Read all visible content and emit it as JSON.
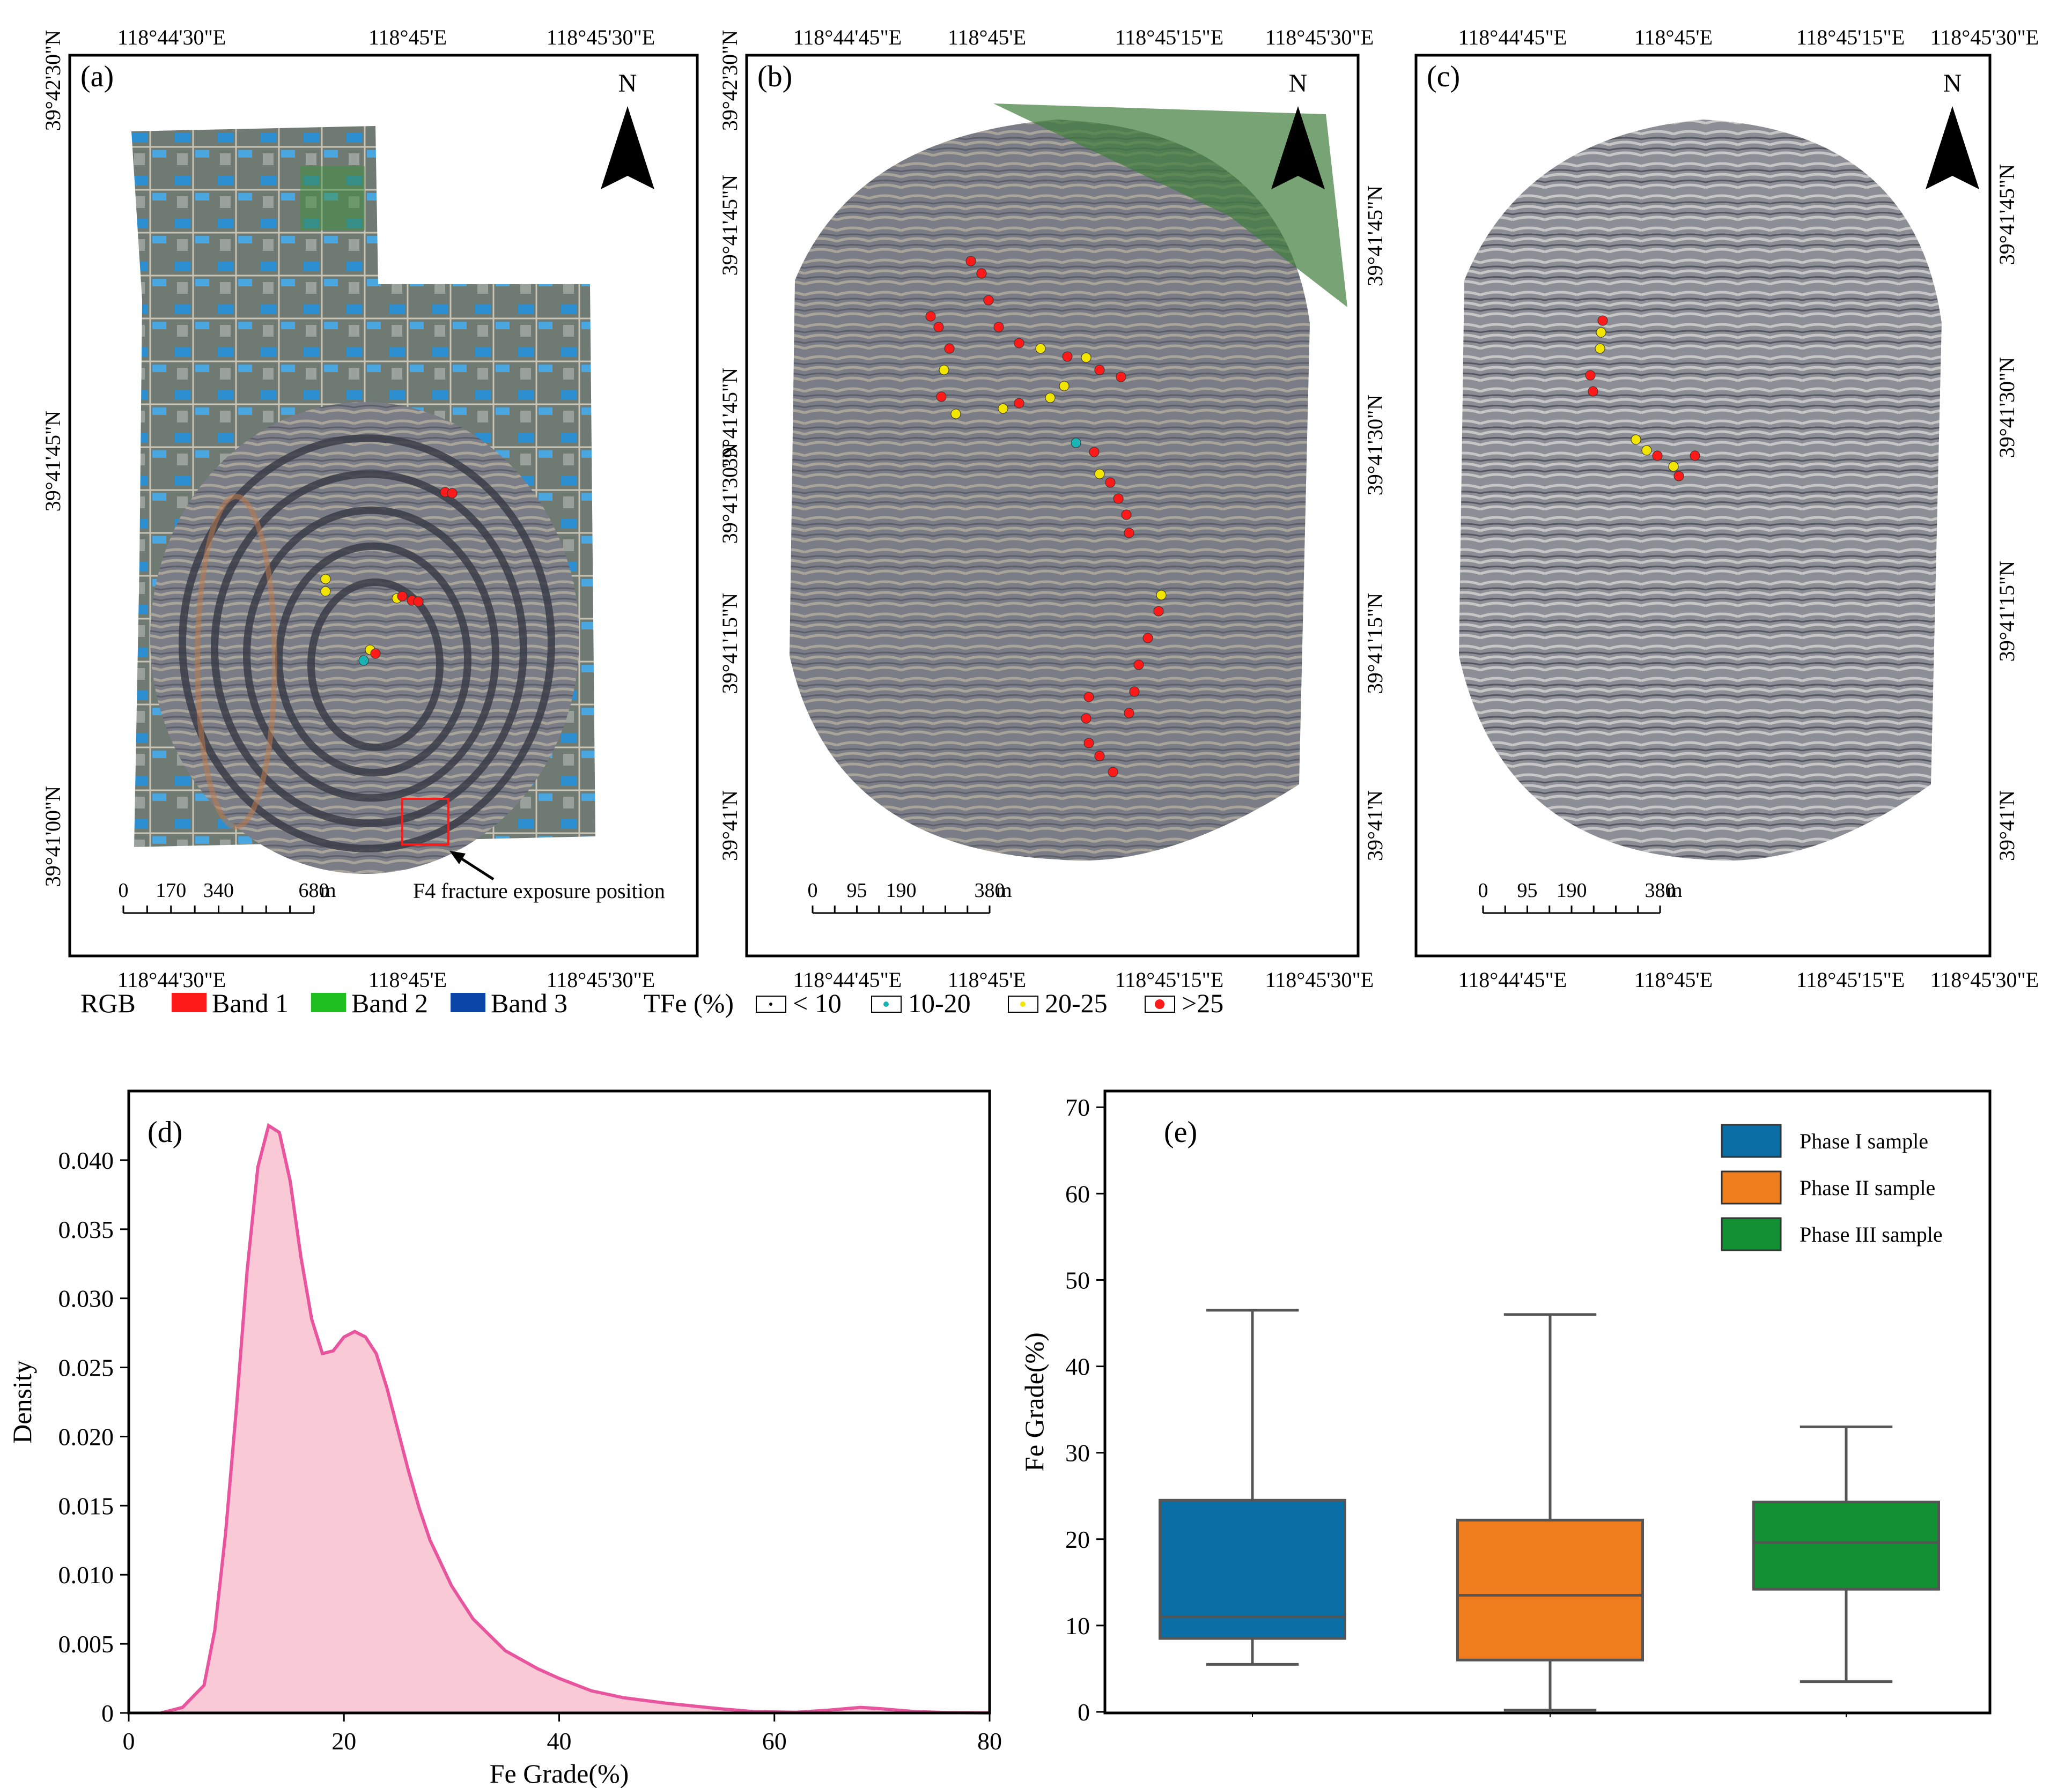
{
  "panel_maps": [
    {
      "id": "a",
      "label": "(a)",
      "north": "N",
      "top_ticks": [
        "118°44'30\"E",
        "118°45'E",
        "118°45'30\"E"
      ],
      "bottom_ticks": [
        "118°44'30\"E",
        "118°45'E",
        "118°45'30\"E"
      ],
      "left_ticks": [
        "39°42'30\"N",
        "39°41'45\"N",
        "39°41'00\"N"
      ],
      "right_ticks": [],
      "scalebar": {
        "ticks": [
          "0",
          "170",
          "340",
          "680"
        ],
        "unit": "m"
      },
      "annotation": "F4 fracture exposure position"
    },
    {
      "id": "b",
      "label": "(b)",
      "north": "N",
      "top_ticks": [
        "118°44'45\"E",
        "118°45'E",
        "118°45'15\"E",
        "118°45'30\"E"
      ],
      "bottom_ticks": [
        "118°44'45\"E",
        "118°45'E",
        "118°45'15\"E",
        "118°45'30\"E"
      ],
      "left_ticks": [
        "39°42'30\"N",
        "39°41'45\"N",
        "39°41'45\"N",
        "39°41'30\"N",
        "39°41'15\"N",
        "39°41'N"
      ],
      "right_ticks": [
        "39°41'45\"N",
        "39°41'30\"N",
        "39°41'15\"N",
        "39°41'N"
      ],
      "scalebar": {
        "ticks": [
          "0",
          "95",
          "190",
          "380"
        ],
        "unit": "m"
      }
    },
    {
      "id": "c",
      "label": "(c)",
      "north": "N",
      "top_ticks": [
        "118°44'45\"E",
        "118°45'E",
        "118°45'15\"E",
        "118°45'30\"E"
      ],
      "bottom_ticks": [
        "118°44'45\"E",
        "118°45'E",
        "118°45'15\"E",
        "118°45'30\"E"
      ],
      "left_ticks": [],
      "right_ticks": [
        "39°41'45\"N",
        "39°41'30\"N",
        "39°41'15\"N",
        "39°41'N"
      ],
      "scalebar": {
        "ticks": [
          "0",
          "95",
          "190",
          "380"
        ],
        "unit": "m"
      }
    }
  ],
  "legend_rgb": {
    "title": "RGB",
    "items": [
      {
        "label": "Band 1",
        "color": "#ff1a1a"
      },
      {
        "label": "Band 2",
        "color": "#1fbf1f"
      },
      {
        "label": "Band 3",
        "color": "#0b47a8"
      }
    ]
  },
  "legend_tfe": {
    "title": "TFe (%)",
    "items": [
      {
        "label": "< 10",
        "color": "#000000"
      },
      {
        "label": "10-20",
        "color": "#19b3b3"
      },
      {
        "label": "20-25",
        "color": "#f2e600"
      },
      {
        "label": ">25",
        "color": "#ff1a1a"
      }
    ]
  },
  "map_colors": {
    "mine_base": "#7c7f88",
    "bench_light": "#b6b0a6",
    "road_dark": "#3a3d48",
    "rust": "#b97a4c",
    "vegetation": "#3f7d3a",
    "facility_blue": "#2e8fd0"
  },
  "chart_data": [
    {
      "id": "d",
      "label": "(d)",
      "type": "area",
      "title": "",
      "xlabel": "Fe Grade(%)",
      "ylabel": "Density",
      "xlim": [
        0,
        80
      ],
      "ylim": [
        0,
        0.045
      ],
      "xticks": [
        "0",
        "20",
        "40",
        "60",
        "80"
      ],
      "yticks": [
        "0",
        "0.005",
        "0.010",
        "0.015",
        "0.020",
        "0.025",
        "0.030",
        "0.035",
        "0.040"
      ],
      "fill_color": "#f9c9d6",
      "line_color": "#e8559e",
      "x": [
        3,
        5,
        7,
        8,
        9,
        10,
        11,
        12,
        13,
        14,
        15,
        16,
        17,
        18,
        19,
        20,
        21,
        22,
        23,
        24,
        25,
        26,
        27,
        28,
        30,
        32,
        35,
        38,
        40,
        43,
        46,
        50,
        55,
        58,
        62,
        65,
        68,
        70,
        73,
        76,
        80
      ],
      "y": [
        0.0,
        0.0004,
        0.002,
        0.006,
        0.013,
        0.022,
        0.032,
        0.0395,
        0.0425,
        0.042,
        0.0385,
        0.033,
        0.0285,
        0.026,
        0.0262,
        0.0272,
        0.0276,
        0.0272,
        0.026,
        0.0235,
        0.0205,
        0.0175,
        0.0148,
        0.0125,
        0.0092,
        0.0068,
        0.0045,
        0.0032,
        0.0025,
        0.0016,
        0.0011,
        0.0007,
        0.0003,
        0.0001,
        5e-05,
        0.0002,
        0.0004,
        0.0003,
        0.0001,
        3e-05,
        0.0
      ]
    },
    {
      "id": "e",
      "label": "(e)",
      "type": "box",
      "title": "",
      "xlabel": "",
      "ylabel": "Fe Grade(%)",
      "ylim": [
        0,
        72
      ],
      "yticks": [
        "0",
        "10",
        "20",
        "30",
        "40",
        "50",
        "60",
        "70"
      ],
      "series": [
        {
          "name": "Phase I sample",
          "color": "#0b6fa6",
          "min": 5.5,
          "q1": 8.5,
          "median": 11.0,
          "q3": 24.5,
          "max": 46.5
        },
        {
          "name": "Phase II sample",
          "color": "#f07d1d",
          "min": 0.2,
          "q1": 6.0,
          "median": 13.5,
          "q3": 22.2,
          "max": 46.0
        },
        {
          "name": "Phase III sample",
          "color": "#129134",
          "min": 3.5,
          "q1": 14.2,
          "median": 19.6,
          "q3": 24.3,
          "max": 33.0
        }
      ]
    }
  ]
}
